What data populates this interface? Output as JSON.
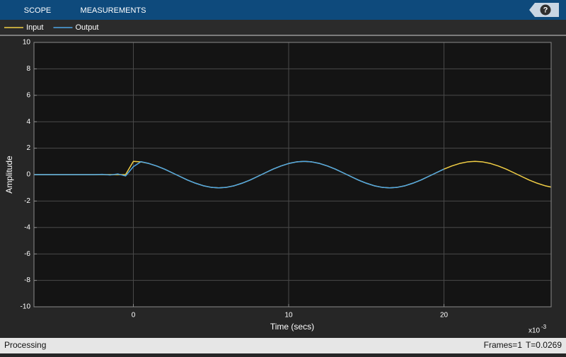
{
  "toolbar": {
    "tabs": [
      "SCOPE",
      "MEASUREMENTS"
    ],
    "help": "?"
  },
  "chart_data": {
    "type": "line",
    "xlabel": "Time (secs)",
    "ylabel": "Amplitude",
    "x_exponent": {
      "base": "x10",
      "power": "-3"
    },
    "xlim": [
      -6.4,
      26.9
    ],
    "ylim": [
      -10,
      10
    ],
    "xticks": [
      0,
      10,
      20
    ],
    "yticks": [
      -10,
      -8,
      -6,
      -4,
      -2,
      0,
      2,
      4,
      6,
      8,
      10
    ],
    "grid": true,
    "legend": "top-left",
    "x": [
      -6.4,
      -6,
      -5.5,
      -5,
      -4.5,
      -4,
      -3.5,
      -3,
      -2.5,
      -2,
      -1.5,
      -1,
      -0.5,
      0,
      0.5,
      1,
      1.5,
      2,
      2.5,
      3,
      3.5,
      4,
      4.5,
      5,
      5.5,
      6,
      6.5,
      7,
      7.5,
      8,
      8.5,
      9,
      9.5,
      10,
      10.5,
      11,
      11.5,
      12,
      12.5,
      13,
      13.5,
      14,
      14.5,
      15,
      15.5,
      16,
      16.5,
      17,
      17.5,
      18,
      18.5,
      19,
      19.5,
      20,
      20.5,
      21,
      21.5,
      22,
      22.5,
      23,
      23.5,
      24,
      24.5,
      25,
      25.5,
      26,
      26.5,
      26.9
    ],
    "series": [
      {
        "name": "Input",
        "color": "#f2cf45",
        "values": [
          0,
          0,
          0,
          0,
          0,
          0,
          0,
          0,
          0,
          0,
          0,
          0,
          0,
          1,
          0.96,
          0.84,
          0.65,
          0.42,
          0.14,
          -0.14,
          -0.42,
          -0.65,
          -0.84,
          -0.96,
          -1,
          -0.96,
          -0.84,
          -0.65,
          -0.42,
          -0.14,
          0.14,
          0.42,
          0.65,
          0.84,
          0.96,
          1,
          0.96,
          0.84,
          0.65,
          0.42,
          0.14,
          -0.14,
          -0.42,
          -0.65,
          -0.84,
          -0.96,
          -1,
          -0.96,
          -0.84,
          -0.65,
          -0.42,
          -0.14,
          0.14,
          0.42,
          0.65,
          0.84,
          0.96,
          1,
          0.96,
          0.84,
          0.65,
          0.42,
          0.14,
          -0.14,
          -0.42,
          -0.65,
          -0.84,
          -0.94
        ]
      },
      {
        "name": "Output",
        "color": "#4ea6e6",
        "values": [
          0,
          0,
          0,
          0,
          0,
          0,
          0,
          0,
          0,
          0.02,
          -0.03,
          0.05,
          -0.1,
          0.6,
          0.98,
          0.84,
          0.65,
          0.42,
          0.14,
          -0.14,
          -0.42,
          -0.65,
          -0.84,
          -0.96,
          -1,
          -0.96,
          -0.84,
          -0.65,
          -0.42,
          -0.14,
          0.14,
          0.42,
          0.65,
          0.84,
          0.96,
          1,
          0.96,
          0.84,
          0.65,
          0.42,
          0.14,
          -0.14,
          -0.42,
          -0.65,
          -0.84,
          -0.96,
          -1,
          -0.96,
          -0.84,
          -0.65,
          -0.42,
          -0.14,
          0.14,
          0.42,
          null,
          null,
          null,
          null,
          null,
          null,
          null,
          null,
          null,
          null,
          null,
          null,
          null,
          null
        ]
      }
    ]
  },
  "status_bar": {
    "state": "Processing",
    "frames": "Frames=1",
    "time": "T=0.0269"
  }
}
